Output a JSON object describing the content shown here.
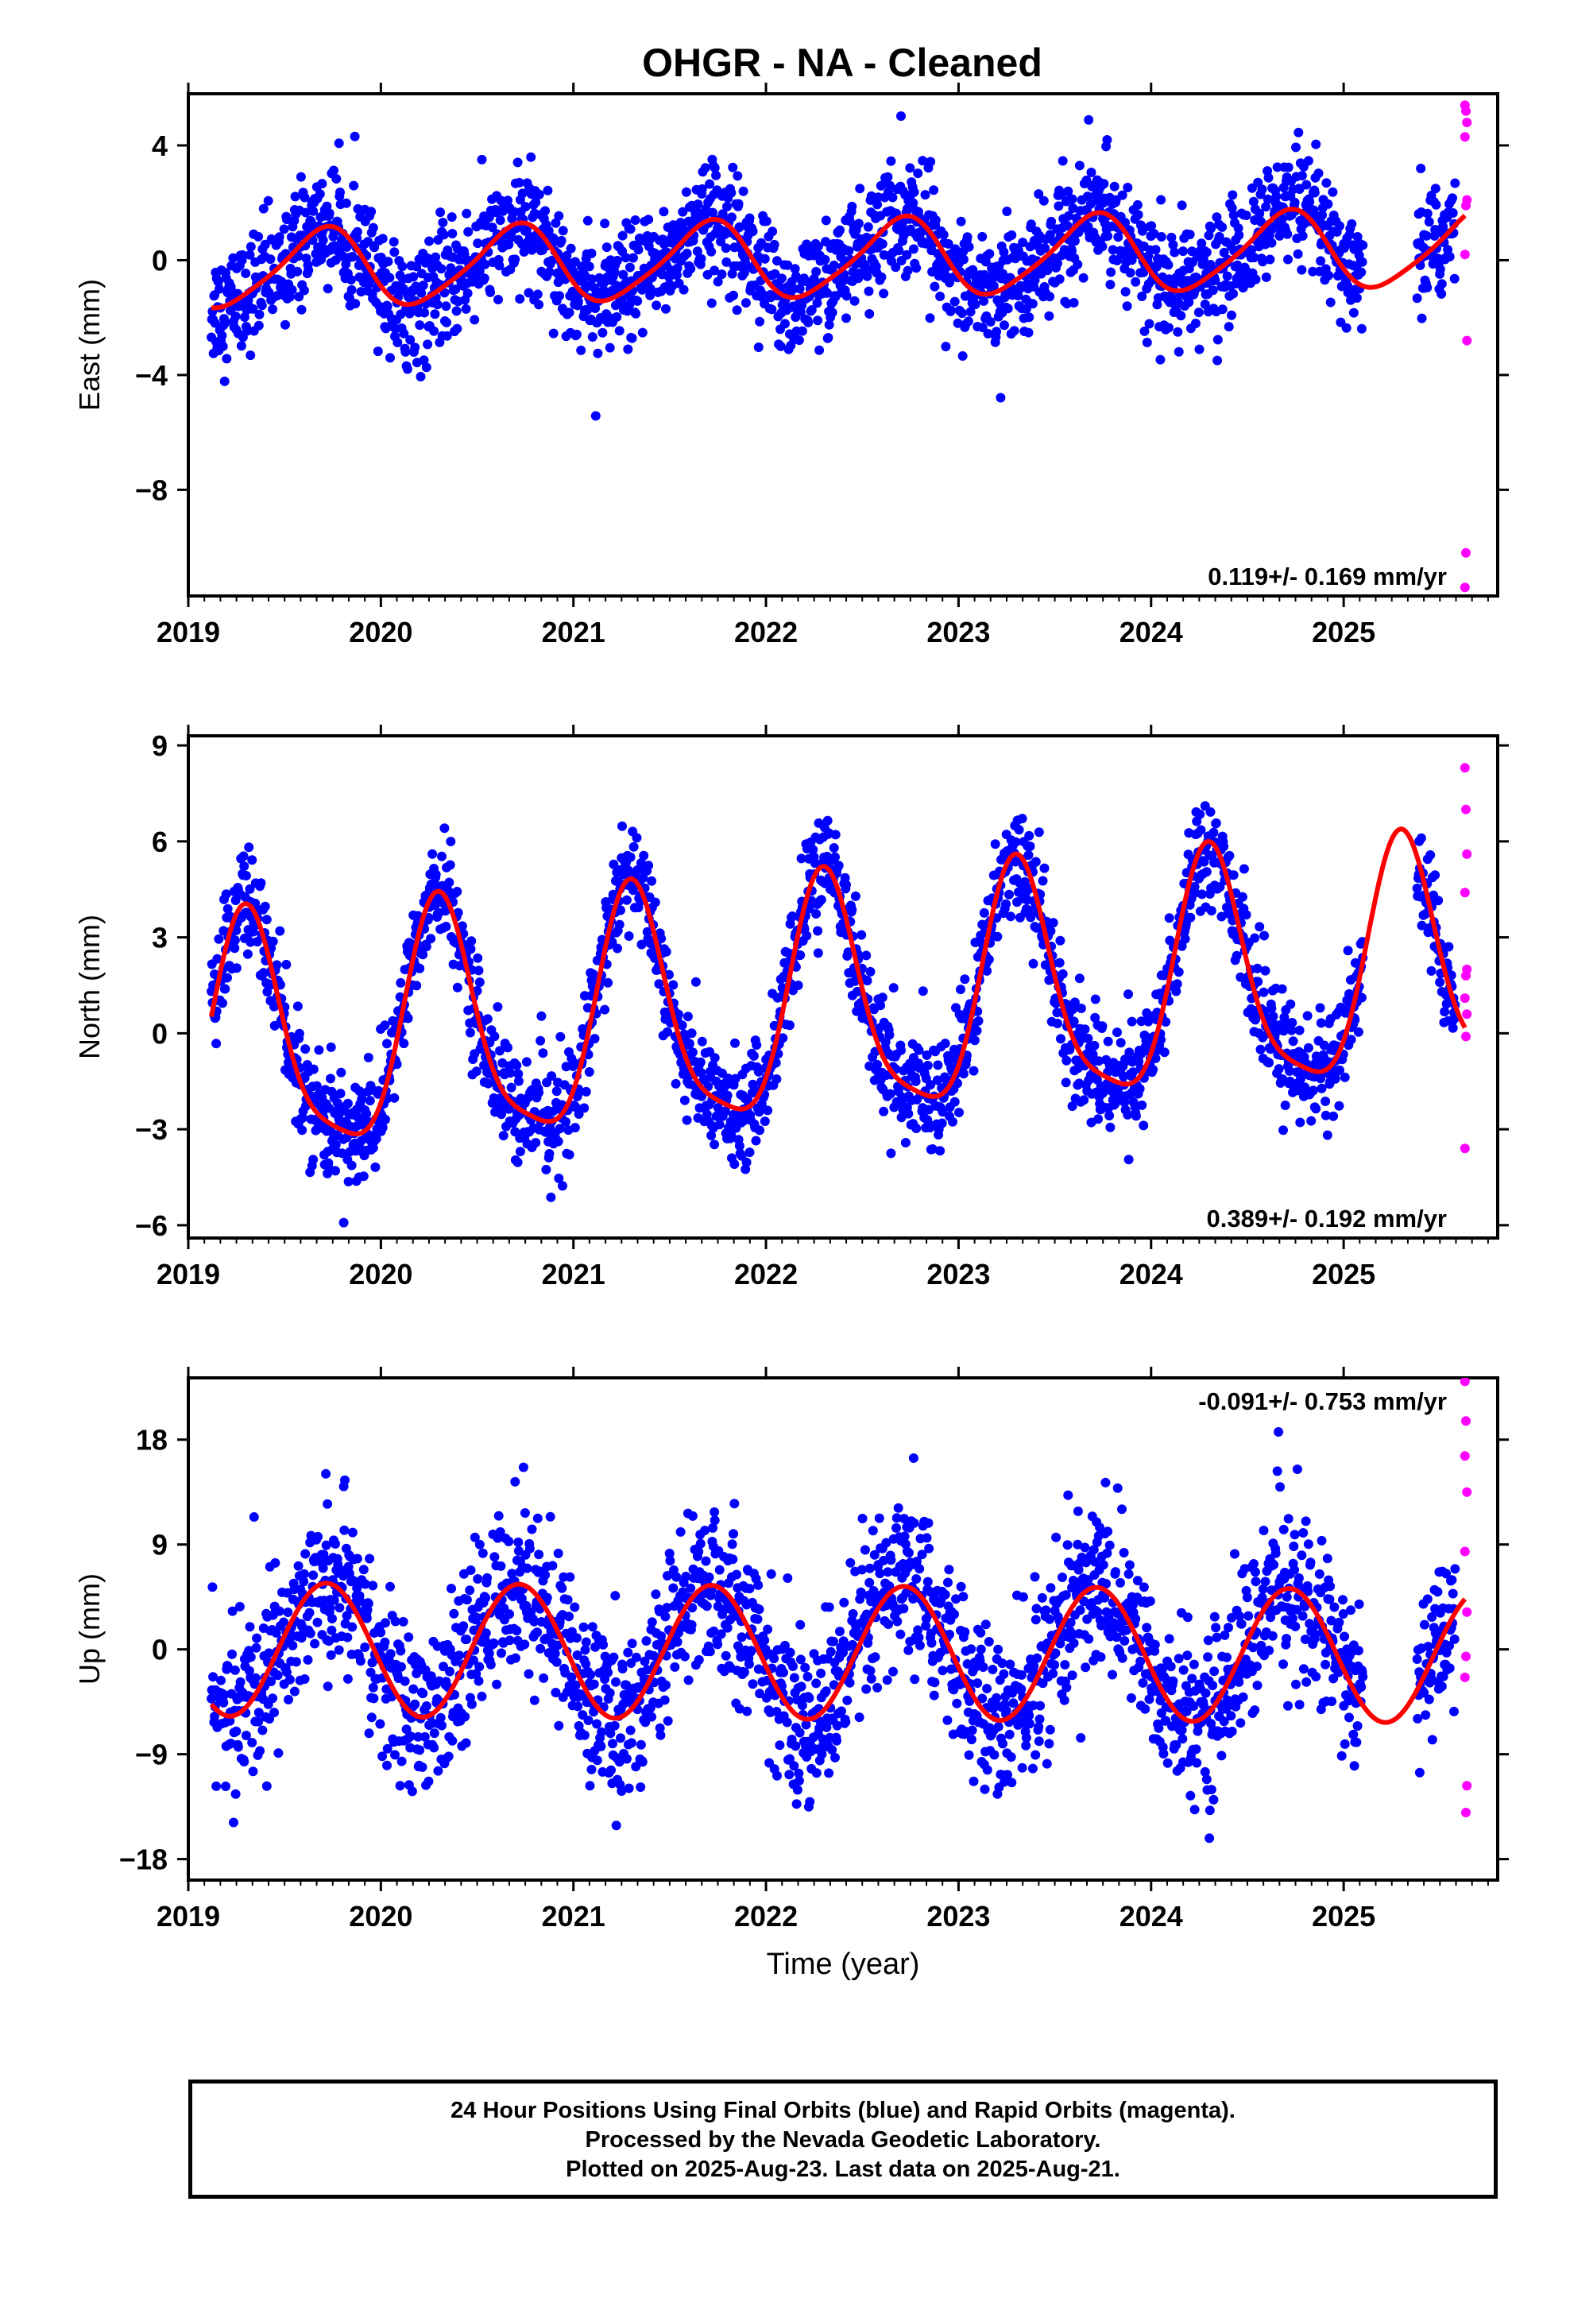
{
  "chart_data": [
    {
      "type": "scatter",
      "panel": "east",
      "title": "OHGR  - NA - Cleaned",
      "xlabel": "",
      "ylabel": "East (mm)",
      "xlim": [
        2019.0,
        2025.8
      ],
      "ylim": [
        -11.7,
        5.8
      ],
      "xticks": [
        2019,
        2020,
        2021,
        2022,
        2023,
        2024,
        2025
      ],
      "yticks": [
        4,
        0,
        -4,
        -8
      ],
      "ytick_labels": [
        "4",
        "0",
        "−4",
        "−8"
      ],
      "rate_annotation": "0.119+/- 0.169 mm/yr",
      "rate_position": "bottom-right",
      "model": {
        "offset": 0.05,
        "rate": 0.119,
        "ann_cos": -0.45,
        "ann_sin": -1.25,
        "semi_cos": -0.2,
        "semi_sin": -0.1,
        "ref_year": 2022.5
      },
      "series": [
        {
          "name": "Final Orbits",
          "color": "#0000ff",
          "kind": "points",
          "x_range": [
            2019.12,
            2025.58
          ],
          "gaps": [
            [
              2025.1,
              2025.38
            ]
          ],
          "scatter_sd": 1.0
        },
        {
          "name": "Rapid Orbits",
          "color": "#ff00ff",
          "kind": "points",
          "x": [
            2025.63,
            2025.635,
            2025.64,
            2025.63,
            2025.64,
            2025.635,
            2025.63,
            2025.64,
            2025.635,
            2025.63
          ],
          "y": [
            5.4,
            5.2,
            4.8,
            4.3,
            2.1,
            1.9,
            0.2,
            -2.8,
            -10.2,
            -11.4
          ]
        },
        {
          "name": "Model fit",
          "color": "#ff0000",
          "kind": "line"
        }
      ]
    },
    {
      "type": "scatter",
      "panel": "north",
      "xlabel": "",
      "ylabel": "North (mm)",
      "xlim": [
        2019.0,
        2025.8
      ],
      "ylim": [
        -6.4,
        9.3
      ],
      "xticks": [
        2019,
        2020,
        2021,
        2022,
        2023,
        2024,
        2025
      ],
      "yticks": [
        9,
        6,
        3,
        0,
        -3,
        -6
      ],
      "ytick_labels": [
        "9",
        "6",
        "3",
        "0",
        "−3",
        "−6"
      ],
      "rate_annotation": "0.389+/- 0.192 mm/yr",
      "rate_position": "bottom-right",
      "model": {
        "offset": 0.85,
        "rate": 0.389,
        "ann_cos": -1.3,
        "ann_sin": 3.4,
        "semi_cos": -0.75,
        "semi_sin": -0.35,
        "ref_year": 2022.5
      },
      "series": [
        {
          "name": "Final Orbits",
          "color": "#0000ff",
          "kind": "points",
          "x_range": [
            2019.12,
            2025.58
          ],
          "gaps": [
            [
              2025.1,
              2025.38
            ]
          ],
          "scatter_sd": 0.85
        },
        {
          "name": "Rapid Orbits",
          "color": "#ff00ff",
          "kind": "points",
          "x": [
            2025.63,
            2025.635,
            2025.64,
            2025.63,
            2025.64,
            2025.635,
            2025.63,
            2025.64,
            2025.635,
            2025.63
          ],
          "y": [
            8.3,
            7.0,
            5.6,
            4.4,
            2.0,
            1.8,
            1.1,
            0.6,
            -0.1,
            -3.6
          ]
        },
        {
          "name": "Model fit",
          "color": "#ff0000",
          "kind": "line"
        }
      ]
    },
    {
      "type": "scatter",
      "panel": "up",
      "xlabel": "Time (year)",
      "ylabel": "Up (mm)",
      "xlim": [
        2019.0,
        2025.8
      ],
      "ylim": [
        -19.8,
        23.3
      ],
      "xticks": [
        2019,
        2020,
        2021,
        2022,
        2023,
        2024,
        2025
      ],
      "yticks": [
        18,
        9,
        0,
        -9,
        -18
      ],
      "ytick_labels": [
        "18",
        "9",
        "0",
        "−9",
        "−18"
      ],
      "rate_annotation": "-0.091+/- 0.753 mm/yr",
      "rate_position": "top-right",
      "model": {
        "offset": -0.3,
        "rate": -0.091,
        "ann_cos": -1.2,
        "ann_sin": -5.6,
        "semi_cos": 0.0,
        "semi_sin": 0.0,
        "ref_year": 2022.5
      },
      "series": [
        {
          "name": "Final Orbits",
          "color": "#0000ff",
          "kind": "points",
          "x_range": [
            2019.12,
            2025.58
          ],
          "gaps": [
            [
              2025.1,
              2025.38
            ]
          ],
          "scatter_sd": 3.6
        },
        {
          "name": "Rapid Orbits",
          "color": "#ff00ff",
          "kind": "points",
          "x": [
            2025.63,
            2025.635,
            2025.64,
            2025.63,
            2025.64,
            2025.635,
            2025.63,
            2025.64,
            2025.635,
            2025.63
          ],
          "y": [
            23.0,
            19.6,
            13.5,
            8.4,
            3.2,
            -0.6,
            -2.4,
            -11.7,
            -14.0,
            16.6
          ]
        },
        {
          "name": "Model fit",
          "color": "#ff0000",
          "kind": "line"
        }
      ]
    }
  ],
  "footer": {
    "line1": "24 Hour Positions Using Final Orbits (blue) and Rapid Orbits (magenta).",
    "line2": "Processed by the Nevada Geodetic Laboratory.",
    "line3": "Plotted on 2025-Aug-23. Last data on 2025-Aug-21."
  }
}
